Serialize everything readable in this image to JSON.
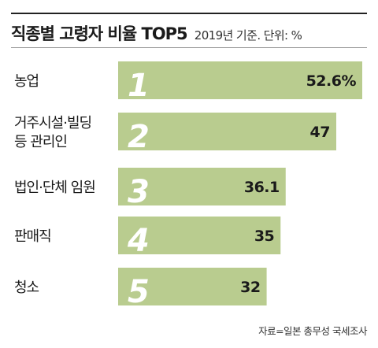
{
  "header": {
    "title": "직종별 고령자 비율 TOP5",
    "subtitle": "2019년 기준. 단위: %"
  },
  "source": "자료=일본 총무성 국세조사",
  "colors": {
    "bar": "#b9cc8f",
    "rank_number": "#ffffff",
    "text": "#1a1a1a"
  },
  "chart_data": {
    "type": "bar",
    "orientation": "horizontal",
    "categories": [
      [
        "농업"
      ],
      [
        "거주시설·빌딩",
        "등 관리인"
      ],
      [
        "법인·단체 임원"
      ],
      [
        "판매직"
      ],
      [
        "청소"
      ]
    ],
    "ranks": [
      "1",
      "2",
      "3",
      "4",
      "5"
    ],
    "values": [
      52.6,
      47,
      36.1,
      35,
      32
    ],
    "value_labels": [
      "52.6%",
      "47",
      "36.1",
      "35",
      "32"
    ],
    "xlim": [
      0,
      52.6
    ],
    "grid": false,
    "legend": "none"
  }
}
